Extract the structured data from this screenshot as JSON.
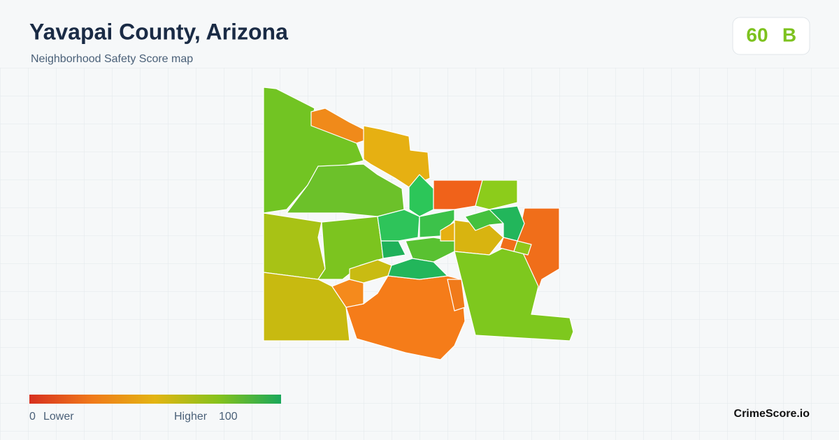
{
  "header": {
    "title": "Yavapai County, Arizona",
    "subtitle": "Neighborhood Safety Score map"
  },
  "score": {
    "value": 60,
    "grade": "B"
  },
  "legend": {
    "min": 0,
    "min_label": "Lower",
    "max_label": "Higher",
    "max": 100
  },
  "brand": "CrimeScore.io"
}
